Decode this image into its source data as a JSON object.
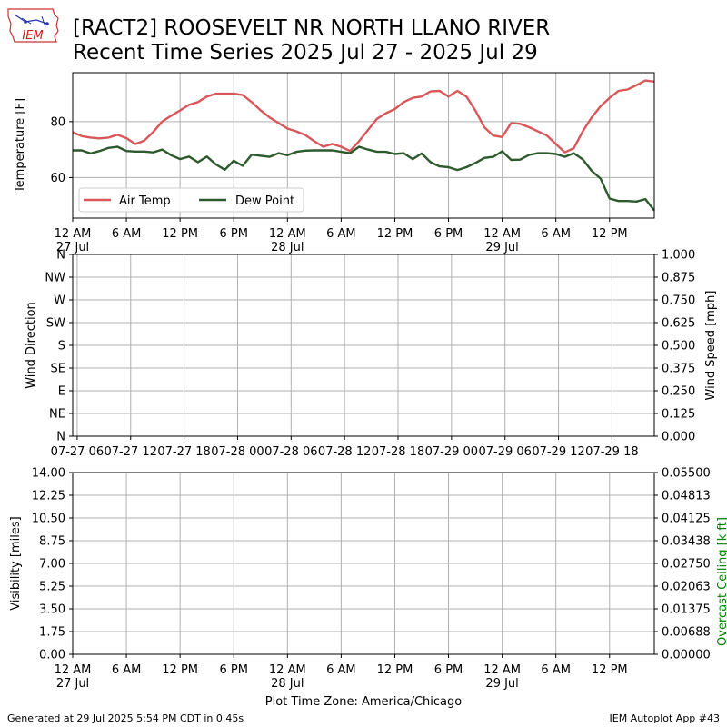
{
  "header": {
    "logo_text": "IEM",
    "title_line1": "[RACT2] ROOSEVELT NR NORTH LLANO RIVER",
    "title_line2": "Recent Time Series 2025 Jul 27 - 2025 Jul 29"
  },
  "footer": {
    "generated": "Generated at 29 Jul 2025 5:54 PM CDT in 0.45s",
    "app": "IEM Autoplot App #43"
  },
  "colors": {
    "air_temp": "#d9575b",
    "dew_point": "#2d5a2d",
    "grid": "#b0b0b0",
    "ceiling_label": "#008000"
  },
  "chart_data": [
    {
      "type": "line",
      "x_unit": "hours since 12 AM 27 Jul (America/Chicago)",
      "xlim": [
        0,
        65
      ],
      "ylabel": "Temperature [F]",
      "yticks": [
        60,
        80
      ],
      "ylim": [
        45.5,
        97.5
      ],
      "x_tick_labels": [
        "12 AM",
        "6 AM",
        "12 PM",
        "6 PM",
        "12 AM",
        "6 AM",
        "12 PM",
        "6 PM",
        "12 AM",
        "6 AM",
        "12 PM"
      ],
      "x_tick_sublabels": [
        "27 Jul",
        "",
        "",
        "",
        "28 Jul",
        "",
        "",
        "",
        "29 Jul",
        "",
        ""
      ],
      "grid": true,
      "legend": "lower left",
      "series": [
        {
          "name": "Air Temp",
          "x": [
            0,
            1,
            2,
            3,
            4,
            5,
            6,
            7,
            8,
            9,
            10,
            11,
            12,
            13,
            14,
            15,
            16,
            17,
            18,
            19,
            20,
            21,
            22,
            23,
            24,
            25,
            26,
            27,
            28,
            29,
            30,
            31,
            32,
            33,
            34,
            35,
            36,
            37,
            38,
            39,
            40,
            41,
            42,
            43,
            44,
            45,
            46,
            47,
            48,
            49,
            50,
            51,
            52,
            53,
            54,
            55,
            56,
            57,
            58,
            59,
            60,
            61,
            62,
            63,
            64,
            65
          ],
          "y": [
            76.2,
            74.8,
            74.3,
            74.0,
            74.3,
            75.3,
            74.1,
            72.0,
            73.2,
            76.3,
            80.0,
            82.1,
            84.0,
            86.0,
            87.0,
            89.0,
            90.0,
            90.0,
            90.0,
            89.5,
            87.0,
            84.0,
            81.5,
            79.5,
            77.5,
            76.5,
            75.2,
            73.0,
            71.0,
            72.0,
            71.0,
            69.5,
            73.0,
            77.0,
            81.0,
            83.0,
            84.5,
            87.0,
            88.5,
            89.0,
            90.8,
            91.0,
            89.0,
            91.0,
            89.0,
            84.0,
            78.0,
            75.0,
            74.5,
            79.5,
            79.2,
            78.0,
            76.5,
            75.0,
            72.0,
            69.0,
            70.5,
            76.5,
            81.5,
            85.5,
            88.5,
            91.0,
            91.5,
            93.0,
            94.7,
            94.3
          ]
        },
        {
          "name": "Dew Point",
          "x": [
            0,
            1,
            2,
            3,
            4,
            5,
            6,
            7,
            8,
            9,
            10,
            11,
            12,
            13,
            14,
            15,
            16,
            17,
            18,
            19,
            20,
            21,
            22,
            23,
            24,
            25,
            26,
            27,
            28,
            29,
            30,
            31,
            32,
            33,
            34,
            35,
            36,
            37,
            38,
            39,
            40,
            41,
            42,
            43,
            44,
            45,
            46,
            47,
            48,
            49,
            50,
            51,
            52,
            53,
            54,
            55,
            56,
            57,
            58,
            59,
            60,
            61,
            62,
            63,
            64,
            65
          ],
          "y": [
            69.7,
            69.7,
            68.6,
            69.5,
            70.6,
            71.0,
            69.5,
            69.3,
            69.3,
            69.0,
            70.0,
            68.0,
            66.6,
            67.5,
            65.5,
            67.5,
            64.7,
            62.8,
            66.0,
            64.2,
            68.2,
            67.8,
            67.4,
            68.7,
            68.0,
            69.2,
            69.6,
            69.7,
            69.7,
            69.7,
            69.2,
            68.7,
            71.0,
            70.0,
            69.2,
            69.2,
            68.4,
            68.7,
            66.6,
            68.6,
            65.5,
            64.0,
            63.7,
            62.7,
            63.7,
            65.2,
            67.0,
            67.4,
            69.4,
            66.3,
            66.4,
            68.1,
            68.7,
            68.7,
            68.4,
            67.4,
            68.7,
            66.5,
            62.4,
            59.6,
            52.5,
            51.6,
            51.6,
            51.4,
            52.3,
            48.2
          ]
        }
      ]
    },
    {
      "type": "line",
      "ylabel": "Wind Direction",
      "y2label": "Wind Speed [mph]",
      "ytick_labels": [
        "N",
        "NE",
        "E",
        "SE",
        "S",
        "SW",
        "W",
        "NW",
        "N"
      ],
      "y2ticks": [
        "0.000",
        "0.125",
        "0.250",
        "0.375",
        "0.500",
        "0.625",
        "0.750",
        "0.875",
        "1.000"
      ],
      "x_tick_labels": [
        "07-27 06",
        "07-27 12",
        "07-27 18",
        "07-28 00",
        "07-28 06",
        "07-28 12",
        "07-28 18",
        "07-29 00",
        "07-29 06",
        "07-29 12",
        "07-29 18"
      ],
      "x_tick_hours": [
        6,
        12,
        18,
        24,
        30,
        36,
        42,
        48,
        54,
        60,
        66
      ],
      "xlim": [
        5.5,
        70.75
      ],
      "grid": true,
      "series": []
    },
    {
      "type": "line",
      "ylabel": "Visibility [miles]",
      "y2label": "Overcast Ceiling [k ft]",
      "yticks": [
        "0.00",
        "1.75",
        "3.50",
        "5.25",
        "7.00",
        "8.75",
        "10.50",
        "12.25",
        "14.00"
      ],
      "y2ticks": [
        "0.00000",
        "0.00688",
        "0.01375",
        "0.02063",
        "0.02750",
        "0.03438",
        "0.04125",
        "0.04813",
        "0.05500"
      ],
      "ylim": [
        0,
        14
      ],
      "xlim": [
        0,
        65
      ],
      "x_tick_labels": [
        "12 AM",
        "6 AM",
        "12 PM",
        "6 PM",
        "12 AM",
        "6 AM",
        "12 PM",
        "6 PM",
        "12 AM",
        "6 AM",
        "12 PM"
      ],
      "x_tick_sublabels": [
        "27 Jul",
        "",
        "",
        "",
        "28 Jul",
        "",
        "",
        "",
        "29 Jul",
        "",
        ""
      ],
      "xlabel": "Plot Time Zone: America/Chicago",
      "grid": true,
      "series": []
    }
  ]
}
